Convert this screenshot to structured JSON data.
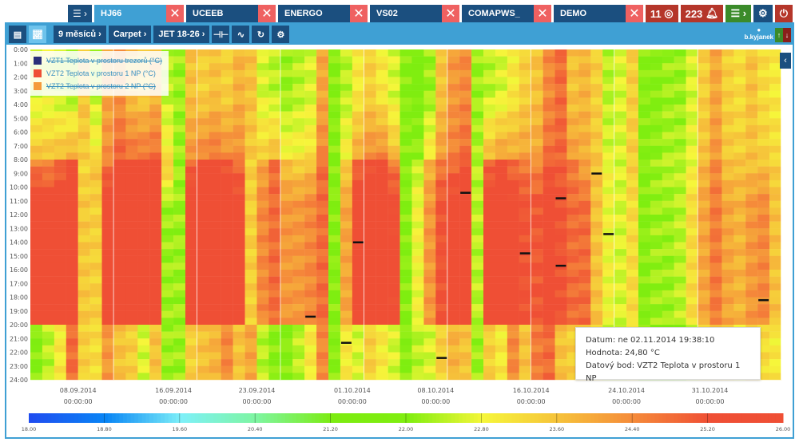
{
  "tabs": [
    {
      "label": "HJ66",
      "active": true
    },
    {
      "label": "UCEEB",
      "active": false
    },
    {
      "label": "ENERGO",
      "active": false
    },
    {
      "label": "VS02",
      "active": false
    },
    {
      "label": "COMAPWS_",
      "active": false
    },
    {
      "label": "DEMO",
      "active": false
    }
  ],
  "menu_icon": "list-chevron-icon",
  "close_glyph": "✕",
  "status": {
    "alarms_count": "11",
    "alarms_icon": "target-icon",
    "events_count": "223",
    "events_icon": "bell-icon"
  },
  "toolbar": {
    "period": "9 měsíců ›",
    "view": "Carpet ›",
    "datapoint": "JET 18-26 ›"
  },
  "user": {
    "name": "b.kyjanek"
  },
  "legend": [
    {
      "label": "VZT1 Teplota v prostoru trezorů (°C)",
      "color": "#2a2f7a",
      "enabled": false
    },
    {
      "label": "VZT2 Teplota v prostoru 1 NP (°C)",
      "color": "#ef4f35",
      "enabled": true
    },
    {
      "label": "VZT2 Teplota v prostoru 2 NP (°C)",
      "color": "#f59a3a",
      "enabled": false
    }
  ],
  "tooltip": {
    "date": "Datum: ne 02.11.2014 19:38:10",
    "value": "Hodnota: 24,80 °C",
    "point": "Datový bod: VZT2 Teplota v prostoru 1 NP"
  },
  "chart_data": {
    "type": "heatmap",
    "title": "",
    "xlabel": "",
    "ylabel": "",
    "series_name": "VZT2 Teplota v prostoru 1 NP (°C)",
    "y_ticks": [
      "0:00",
      "1:00",
      "2:00",
      "3:00",
      "4:00",
      "5:00",
      "6:00",
      "7:00",
      "8:00",
      "9:00",
      "10:00",
      "11:00",
      "12:00",
      "13:00",
      "14:00",
      "15:00",
      "16:00",
      "17:00",
      "18:00",
      "19:00",
      "20:00",
      "21:00",
      "22:00",
      "23:00",
      "24:00"
    ],
    "x_ticks": [
      {
        "date": "08.09.2014",
        "time": "00:00:00",
        "day_index": 4
      },
      {
        "date": "16.09.2014",
        "time": "00:00:00",
        "day_index": 12
      },
      {
        "date": "23.09.2014",
        "time": "00:00:00",
        "day_index": 19
      },
      {
        "date": "01.10.2014",
        "time": "00:00:00",
        "day_index": 27
      },
      {
        "date": "08.10.2014",
        "time": "00:00:00",
        "day_index": 34
      },
      {
        "date": "16.10.2014",
        "time": "00:00:00",
        "day_index": 42
      },
      {
        "date": "24.10.2014",
        "time": "00:00:00",
        "day_index": 50
      },
      {
        "date": "31.10.2014",
        "time": "00:00:00",
        "day_index": 57
      }
    ],
    "days": 63,
    "color_scale": {
      "min": 18.0,
      "max": 26.0,
      "ticks": [
        "18.00",
        "18.80",
        "19.60",
        "20.40",
        "21.20",
        "22.00",
        "22.80",
        "23.60",
        "24.40",
        "25.20",
        "26.00"
      ],
      "stops": [
        "#1f4df0",
        "#0a86f5",
        "#7ef0f8",
        "#7ef5a0",
        "#7cec10",
        "#80ee10",
        "#f6f63a",
        "#f6c23a",
        "#f58a3a",
        "#ef4f35",
        "#ef4f35"
      ]
    },
    "day_profiles": [
      [
        22.5,
        24.5,
        25.8,
        22.0
      ],
      [
        22.6,
        24.4,
        25.6,
        22.4
      ],
      [
        22.4,
        24.8,
        25.8,
        23.0
      ],
      [
        22.2,
        25.4,
        25.9,
        24.8
      ],
      [
        23.6,
        23.3,
        23.5,
        23.4
      ],
      [
        22.4,
        23.6,
        23.4,
        23.2
      ],
      [
        24.0,
        24.6,
        25.9,
        24.2
      ],
      [
        24.2,
        25.6,
        25.9,
        23.6
      ],
      [
        23.6,
        25.7,
        25.9,
        23.4
      ],
      [
        23.4,
        25.8,
        25.9,
        22.6
      ],
      [
        23.8,
        25.6,
        25.9,
        23.6
      ],
      [
        22.4,
        23.6,
        22.2,
        22.2
      ],
      [
        22.2,
        22.2,
        22.2,
        22.2
      ],
      [
        23.6,
        24.8,
        25.9,
        23.4
      ],
      [
        23.4,
        25.4,
        25.9,
        23.6
      ],
      [
        23.6,
        25.6,
        25.9,
        23.8
      ],
      [
        23.4,
        25.2,
        25.6,
        24.4
      ],
      [
        23.8,
        24.8,
        25.5,
        23.6
      ],
      [
        23.6,
        23.4,
        23.4,
        24.0
      ],
      [
        22.6,
        24.0,
        24.4,
        22.4
      ],
      [
        22.4,
        24.8,
        24.8,
        22.0
      ],
      [
        22.2,
        23.6,
        24.2,
        22.0
      ],
      [
        22.4,
        23.4,
        24.2,
        22.4
      ],
      [
        22.6,
        23.6,
        24.4,
        23.0
      ],
      [
        24.0,
        24.8,
        24.8,
        24.4
      ],
      [
        22.0,
        22.0,
        22.0,
        22.0
      ],
      [
        22.4,
        23.4,
        24.0,
        23.0
      ],
      [
        23.0,
        24.8,
        25.8,
        22.6
      ],
      [
        23.4,
        25.2,
        25.9,
        23.4
      ],
      [
        23.0,
        25.6,
        25.9,
        23.0
      ],
      [
        22.6,
        24.6,
        25.4,
        22.6
      ],
      [
        22.0,
        22.0,
        22.0,
        22.0
      ],
      [
        21.8,
        22.4,
        22.8,
        22.4
      ],
      [
        22.2,
        23.8,
        24.2,
        22.6
      ],
      [
        23.6,
        24.6,
        25.2,
        23.4
      ],
      [
        24.2,
        24.8,
        25.6,
        23.8
      ],
      [
        24.4,
        25.2,
        25.9,
        23.6
      ],
      [
        22.2,
        22.4,
        22.4,
        22.2
      ],
      [
        22.4,
        24.8,
        25.7,
        23.4
      ],
      [
        22.6,
        25.4,
        25.9,
        23.0
      ],
      [
        23.0,
        24.8,
        25.5,
        24.4
      ],
      [
        23.4,
        24.6,
        25.2,
        23.6
      ],
      [
        23.6,
        24.4,
        25.1,
        24.6
      ],
      [
        24.4,
        25.1,
        25.6,
        24.8
      ],
      [
        24.8,
        25.0,
        25.2,
        23.6
      ],
      [
        23.6,
        24.6,
        24.8,
        23.4
      ],
      [
        23.8,
        24.0,
        24.8,
        23.6
      ],
      [
        23.4,
        23.6,
        23.6,
        23.4
      ],
      [
        22.4,
        22.8,
        22.8,
        22.6
      ],
      [
        22.6,
        22.6,
        22.6,
        22.4
      ],
      [
        23.4,
        23.4,
        23.2,
        22.8
      ],
      [
        22.0,
        22.0,
        22.0,
        22.0
      ],
      [
        22.0,
        22.2,
        22.2,
        22.0
      ],
      [
        22.2,
        22.4,
        22.2,
        22.0
      ],
      [
        22.2,
        22.4,
        22.4,
        22.2
      ],
      [
        22.6,
        22.8,
        23.2,
        22.4
      ],
      [
        23.4,
        23.8,
        24.0,
        23.0
      ],
      [
        24.0,
        24.4,
        24.6,
        23.4
      ],
      [
        23.4,
        23.6,
        24.0,
        23.4
      ],
      [
        23.2,
        23.6,
        23.8,
        23.0
      ],
      [
        23.6,
        23.6,
        24.2,
        23.6
      ],
      [
        23.2,
        23.6,
        24.4,
        23.2
      ],
      [
        23.0,
        23.4,
        23.6,
        23.0
      ]
    ],
    "markers": [
      {
        "day": 23,
        "hour": 19.4
      },
      {
        "day": 27,
        "hour": 14.0
      },
      {
        "day": 26,
        "hour": 21.3
      },
      {
        "day": 36,
        "hour": 10.4
      },
      {
        "day": 41,
        "hour": 14.8
      },
      {
        "day": 44,
        "hour": 15.7
      },
      {
        "day": 44,
        "hour": 10.8
      },
      {
        "day": 47,
        "hour": 9.0
      },
      {
        "day": 48,
        "hour": 13.4
      },
      {
        "day": 34,
        "hour": 22.4
      },
      {
        "day": 61,
        "hour": 18.2
      }
    ]
  }
}
